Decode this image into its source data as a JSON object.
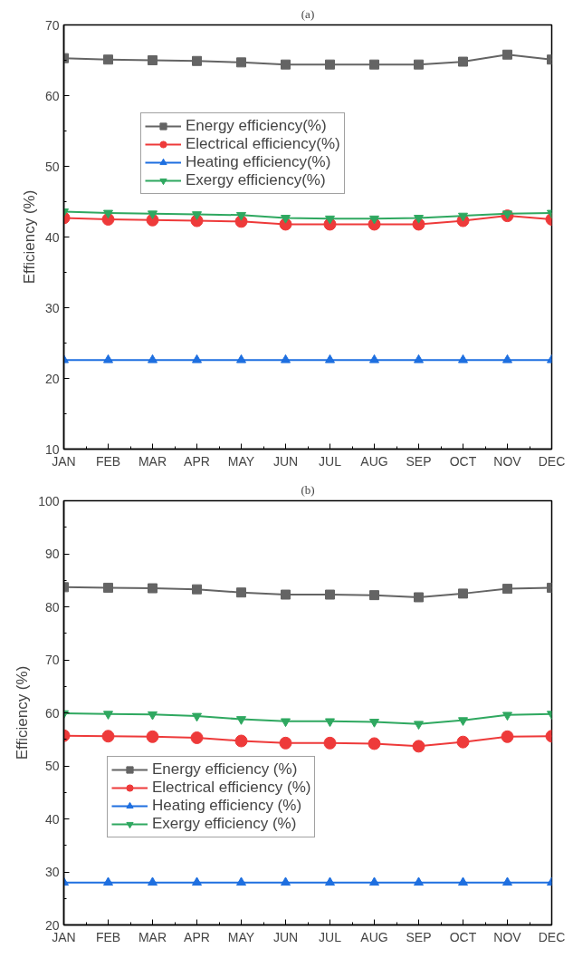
{
  "chart_data": [
    {
      "type": "line",
      "title": "(a)",
      "ylabel": "Efficiency (%)",
      "categories": [
        "JAN",
        "FEB",
        "MAR",
        "APR",
        "MAY",
        "JUN",
        "JUL",
        "AUG",
        "SEP",
        "OCT",
        "NOV",
        "DEC"
      ],
      "ylim": [
        10,
        70
      ],
      "yticks": [
        10,
        20,
        30,
        40,
        50,
        60,
        70
      ],
      "legend": "top left",
      "series": [
        {
          "name": "Energy efficiency(%)",
          "color": "#646464",
          "marker": "square",
          "values": [
            65.3,
            65.1,
            65.0,
            64.9,
            64.7,
            64.4,
            64.4,
            64.4,
            64.4,
            64.8,
            65.8,
            65.1
          ]
        },
        {
          "name": "Electrical efficiency(%)",
          "color": "#ee3a3a",
          "marker": "circle",
          "values": [
            42.7,
            42.5,
            42.4,
            42.3,
            42.2,
            41.8,
            41.8,
            41.8,
            41.8,
            42.3,
            43.0,
            42.5
          ]
        },
        {
          "name": "Heating efficiency(%)",
          "color": "#1e6fe0",
          "marker": "triangle",
          "values": [
            22.6,
            22.6,
            22.6,
            22.6,
            22.6,
            22.6,
            22.6,
            22.6,
            22.6,
            22.6,
            22.6,
            22.6
          ]
        },
        {
          "name": "Exergy efficiency(%)",
          "color": "#2fa860",
          "marker": "triangle",
          "values": [
            43.6,
            43.4,
            43.3,
            43.2,
            43.1,
            42.7,
            42.6,
            42.6,
            42.7,
            43.0,
            43.3,
            43.4
          ]
        }
      ]
    },
    {
      "type": "line",
      "title": "(b)",
      "ylabel": "Efficiency (%)",
      "categories": [
        "JAN",
        "FEB",
        "MAR",
        "APR",
        "MAY",
        "JUN",
        "JUL",
        "AUG",
        "SEP",
        "OCT",
        "NOV",
        "DEC"
      ],
      "ylim": [
        20,
        100
      ],
      "yticks": [
        20,
        30,
        40,
        50,
        60,
        70,
        80,
        90,
        100
      ],
      "legend": "bottom left",
      "series": [
        {
          "name": "Energy efficiency (%)",
          "color": "#646464",
          "marker": "square",
          "values": [
            83.7,
            83.6,
            83.5,
            83.3,
            82.7,
            82.3,
            82.3,
            82.2,
            81.8,
            82.5,
            83.4,
            83.6
          ]
        },
        {
          "name": "Electrical efficiency (%)",
          "color": "#ee3a3a",
          "marker": "circle",
          "values": [
            55.7,
            55.6,
            55.5,
            55.3,
            54.7,
            54.3,
            54.3,
            54.2,
            53.7,
            54.5,
            55.5,
            55.6
          ]
        },
        {
          "name": "Heating efficiency (%)",
          "color": "#1e6fe0",
          "marker": "triangle",
          "values": [
            28.0,
            28.0,
            28.0,
            28.0,
            28.0,
            28.0,
            28.0,
            28.0,
            28.0,
            28.0,
            28.0,
            28.0
          ]
        },
        {
          "name": "Exergy efficiency (%)",
          "color": "#2fa860",
          "marker": "triangle",
          "values": [
            59.9,
            59.8,
            59.7,
            59.4,
            58.8,
            58.4,
            58.4,
            58.3,
            57.9,
            58.6,
            59.6,
            59.8
          ]
        }
      ]
    }
  ]
}
